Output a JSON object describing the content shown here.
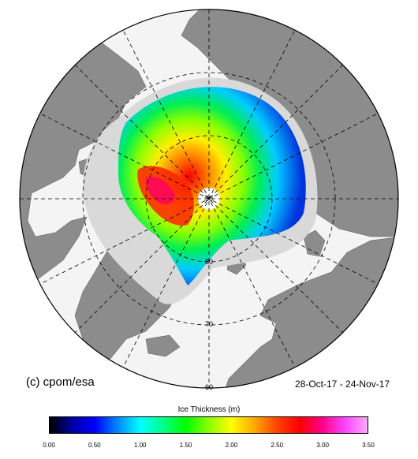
{
  "map": {
    "credit": "(c) cpom/esa",
    "date_range": "28-Oct-17 - 24-Nov-17",
    "latitude_labels": [
      "90",
      "80",
      "70",
      "60"
    ],
    "colors": {
      "land": "#8c8c8c",
      "ocean": "#f4f4f4",
      "sea_ice_no_data": "#d9d9d9",
      "graticule": "#000000"
    }
  },
  "colorbar": {
    "title": "Ice Thickness (m)",
    "ticks": [
      "0.00",
      "0.50",
      "1.00",
      "1.50",
      "2.00",
      "2.50",
      "3.00",
      "3.50"
    ],
    "range": [
      0,
      3.5
    ],
    "colors": [
      "#000000",
      "#0000a0",
      "#0000ff",
      "#0088ff",
      "#00ffff",
      "#00ff88",
      "#00ff00",
      "#88ff00",
      "#ffff00",
      "#ffaa00",
      "#ff4400",
      "#ff0000",
      "#ff0088",
      "#ff44ff",
      "#ffaaff"
    ]
  }
}
